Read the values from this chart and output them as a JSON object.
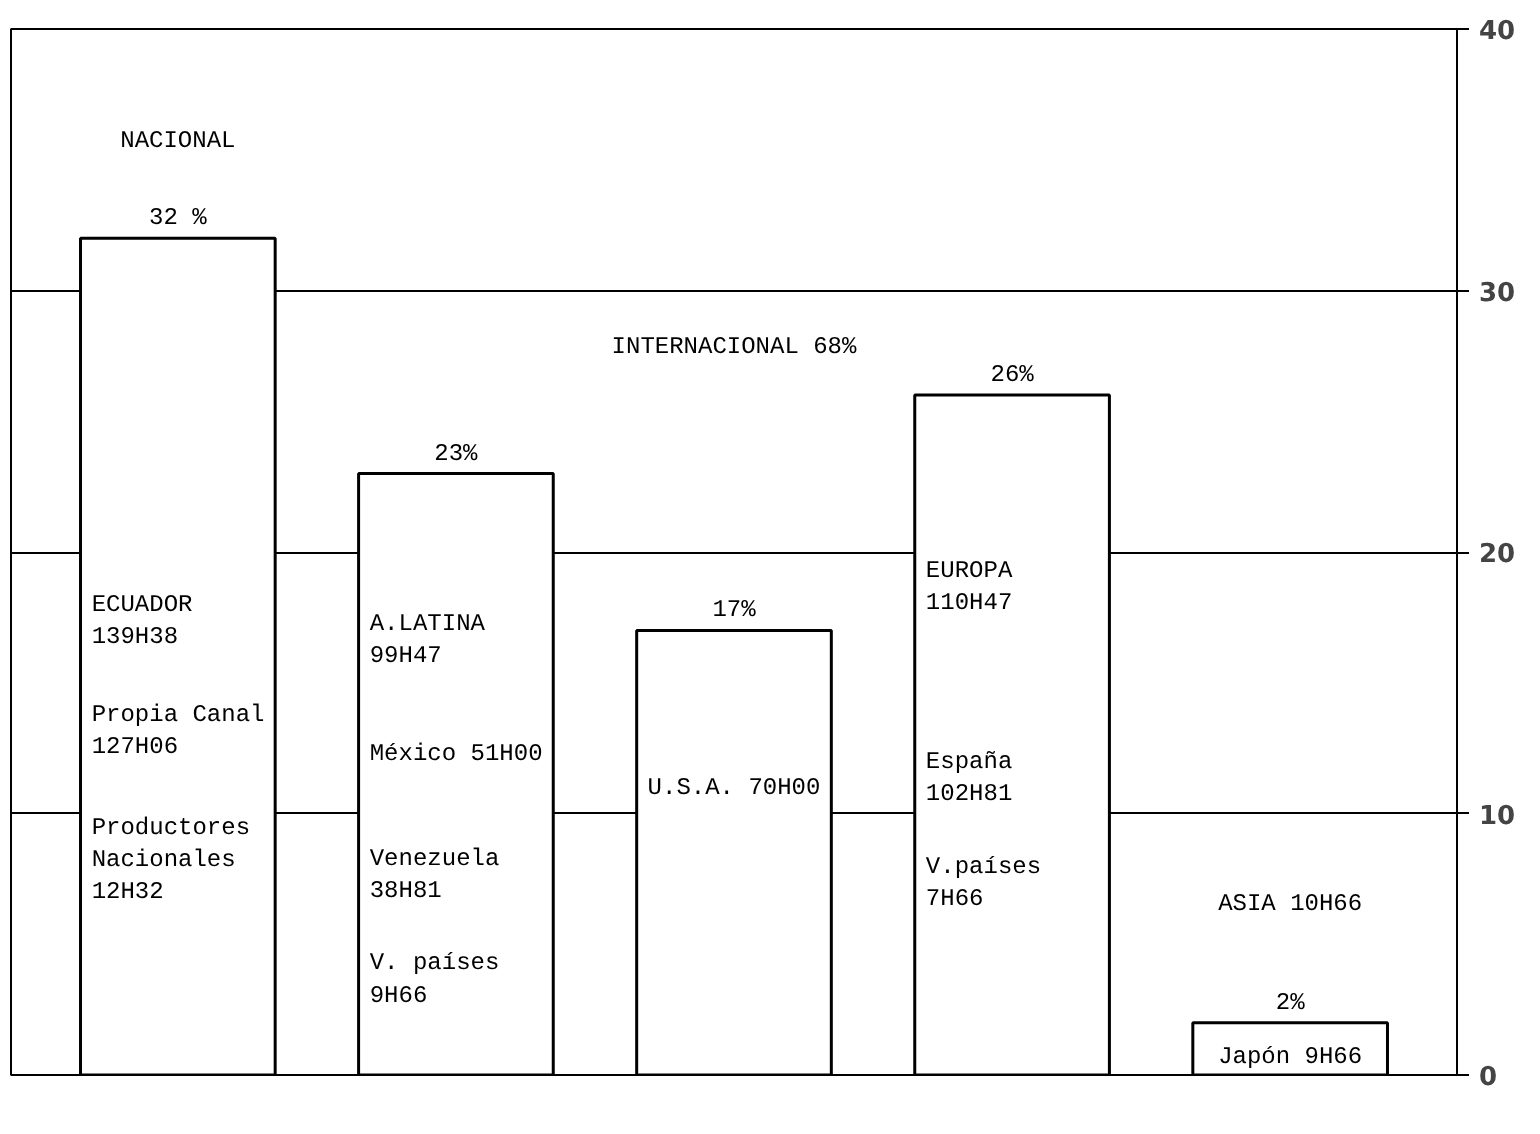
{
  "chart_data": {
    "type": "bar",
    "categories": [
      null,
      null,
      null,
      null,
      null
    ],
    "values": [
      32,
      23,
      17,
      26,
      2
    ],
    "value_labels": [
      "32 %",
      "23%",
      "17%",
      "26%",
      "2%"
    ],
    "color": "#ffffff",
    "ylim": [
      0,
      40
    ],
    "yticks": [
      0,
      10,
      20,
      30,
      40
    ],
    "grid": "y",
    "tick_labels": "y",
    "annotations": [
      "NACIONAL",
      "INTERNACIONAL 68%",
      "ECUADOR 139H38",
      "Propia Canal 127H06",
      "Productores Nacionales 12H32",
      "A.LATINA 99H47",
      "México 51H00",
      "Venezuela 38H81",
      "V. países 9H66",
      "U.S.A. 70H00",
      "EUROPA 110H47",
      "España 102H81",
      "V.países 7H66",
      "ASIA 10H66",
      "Japón 9H66"
    ]
  }
}
